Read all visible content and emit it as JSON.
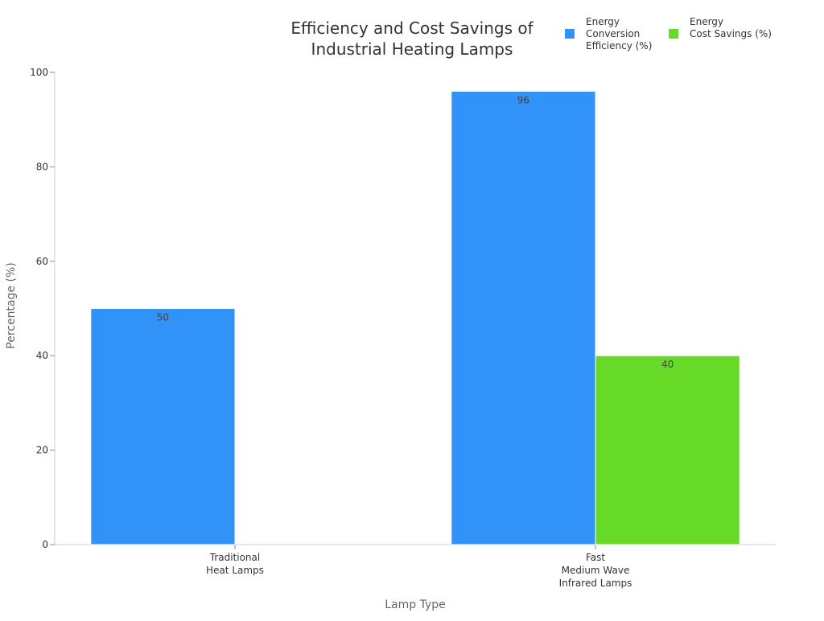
{
  "chart_data": {
    "type": "bar",
    "title": "Efficiency and Cost Savings of Industrial Heating Lamps",
    "title_lines": [
      "Efficiency and Cost Savings of",
      "Industrial Heating Lamps"
    ],
    "xlabel": "Lamp Type",
    "ylabel": "Percentage (%)",
    "ylim": [
      0,
      100
    ],
    "yticks": [
      0,
      20,
      40,
      60,
      80,
      100
    ],
    "grid": false,
    "legend_position": "top-right",
    "categories": [
      "Traditional Heat Lamps",
      "Fast Medium Wave Infrared Lamps"
    ],
    "category_lines": [
      [
        "Traditional",
        "Heat Lamps"
      ],
      [
        "Fast",
        "Medium Wave",
        "Infrared Lamps"
      ]
    ],
    "series": [
      {
        "name": "Energy Conversion Efficiency (%)",
        "name_lines": [
          "Energy",
          "Conversion",
          "Efficiency (%)"
        ],
        "color": "#3192f8",
        "values": [
          50,
          96
        ],
        "data_labels": [
          "50",
          "96"
        ]
      },
      {
        "name": "Energy Cost Savings (%)",
        "name_lines": [
          "Energy",
          "Cost Savings (%)"
        ],
        "color": "#67d927",
        "values": [
          null,
          40
        ],
        "data_labels": [
          "",
          "40"
        ]
      }
    ]
  }
}
